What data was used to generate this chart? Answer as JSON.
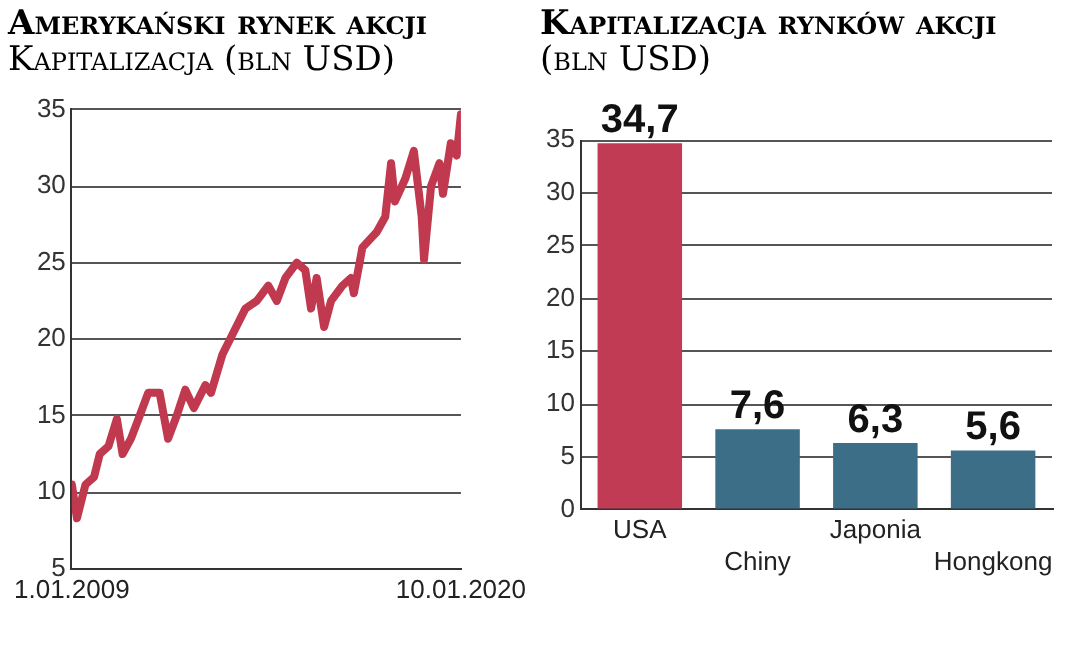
{
  "chart_data": [
    {
      "type": "line",
      "title": "Amerykański rynek akcji",
      "subtitle": "Kapitalizacja (bln USD)",
      "x": [
        "2009-01-01",
        "2009-02-23",
        "2009-05-22",
        "2009-08-19",
        "2009-10-17",
        "2010-01-15",
        "2010-04-12",
        "2010-06-10",
        "2010-09-05",
        "2010-12-04",
        "2011-03-02",
        "2011-06-28",
        "2011-09-24",
        "2011-12-22",
        "2012-03-20",
        "2012-06-17",
        "2012-10-14",
        "2012-12-11",
        "2013-04-08",
        "2013-08-05",
        "2013-12-02",
        "2014-03-30",
        "2014-07-27",
        "2014-10-23",
        "2015-01-20",
        "2015-05-18",
        "2015-08-14",
        "2015-10-12",
        "2015-12-09",
        "2016-02-24",
        "2016-05-06",
        "2016-09-01",
        "2016-11-29",
        "2016-12-28",
        "2017-03-27",
        "2017-08-22",
        "2017-11-18",
        "2018-01-17",
        "2018-02-26",
        "2018-06-14",
        "2018-09-10",
        "2018-11-30",
        "2018-12-24",
        "2019-03-07",
        "2019-06-02",
        "2019-07-08",
        "2019-09-27",
        "2019-11-27",
        "2020-01-10"
      ],
      "series": [
        {
          "color": "#c0394f",
          "values": [
            10.5,
            8.3,
            10.5,
            11,
            12.5,
            13,
            14.8,
            12.5,
            13.5,
            15,
            16.5,
            16.5,
            13.5,
            15,
            16.7,
            15.5,
            17,
            16.5,
            19,
            20.5,
            22,
            22.5,
            23.5,
            22.5,
            24,
            25,
            24.5,
            22,
            24,
            20.8,
            22.5,
            23.5,
            24,
            23,
            26,
            27,
            28,
            31.5,
            29,
            30.5,
            32.3,
            28,
            25.2,
            30,
            31.5,
            29.5,
            32.8,
            32,
            34.7
          ]
        }
      ],
      "xlim": [
        "2009-01-01",
        "2020-01-10"
      ],
      "xticks": [
        {
          "value": "2009-01-01",
          "label": "1.01.2009"
        },
        {
          "value": "2020-01-10",
          "label": "10.01.2020"
        }
      ],
      "ylim": [
        5,
        35
      ],
      "yticks": [
        5,
        10,
        15,
        20,
        25,
        30,
        35
      ],
      "grid": "y",
      "marker": "none",
      "line_style": "solid"
    },
    {
      "type": "bar",
      "title": "Kapitalizacja rynków akcji",
      "subtitle": "(bln USD)",
      "categories": [
        "USA",
        "Chiny",
        "Japonia",
        "Hongkong"
      ],
      "values": [
        34.7,
        7.6,
        6.3,
        5.6
      ],
      "colors": [
        "#c23b55",
        "#3d6e87",
        "#3d6e87",
        "#3d6e87"
      ],
      "value_labels": [
        "34,7",
        "7,6",
        "6,3",
        "5,6"
      ],
      "ylim": [
        0,
        35
      ],
      "yticks": [
        0,
        5,
        10,
        15,
        20,
        25,
        30,
        35
      ],
      "grid": "y"
    }
  ]
}
